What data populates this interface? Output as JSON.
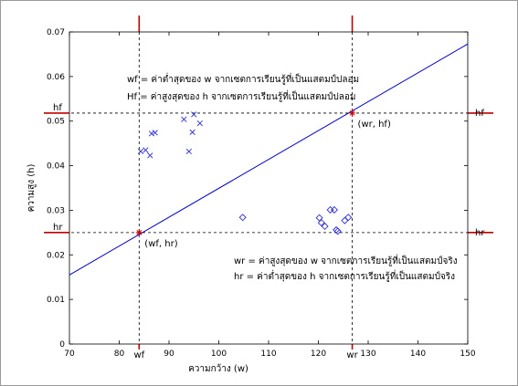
{
  "chart_data": {
    "type": "scatter",
    "title": "",
    "xlabel": "ความกว้าง (w)",
    "ylabel": "ความสูง (h)",
    "xlim": [
      70,
      150
    ],
    "ylim": [
      0,
      0.07
    ],
    "x_ticks": [
      70,
      80,
      90,
      100,
      110,
      120,
      130,
      140,
      150
    ],
    "y_ticks": [
      0,
      0.01,
      0.02,
      0.03,
      0.04,
      0.05,
      0.06,
      0.07
    ],
    "x_tick_labels": [
      "70",
      "80",
      "90",
      "100",
      "110",
      "120",
      "130",
      "140",
      "150"
    ],
    "y_tick_labels": [
      "0",
      "0.01",
      "0.02",
      "0.03",
      "0.04",
      "0.05",
      "0.06",
      "0.07"
    ],
    "grid": false,
    "series": [
      {
        "marker": "x",
        "color": "#2b2bd6",
        "points": [
          [
            84.3,
            0.0432
          ],
          [
            85.3,
            0.0435
          ],
          [
            86.2,
            0.0423
          ],
          [
            86.5,
            0.0472
          ],
          [
            87.2,
            0.0474
          ],
          [
            93.0,
            0.0504
          ],
          [
            94.0,
            0.0432
          ],
          [
            94.7,
            0.0475
          ],
          [
            95.0,
            0.0515
          ],
          [
            96.2,
            0.0495
          ]
        ]
      },
      {
        "marker": "diamond",
        "color": "#2b2bd6",
        "points": [
          [
            104.8,
            0.0284
          ],
          [
            120.2,
            0.0283
          ],
          [
            120.6,
            0.0272
          ],
          [
            121.3,
            0.0264
          ],
          [
            122.4,
            0.0301
          ],
          [
            123.2,
            0.0301
          ],
          [
            123.6,
            0.0256
          ],
          [
            123.9,
            0.0253
          ],
          [
            125.3,
            0.0277
          ],
          [
            126.0,
            0.0284
          ]
        ]
      }
    ],
    "line": {
      "color": "#0000c8",
      "points": [
        [
          70,
          0.0155
        ],
        [
          150,
          0.0673
        ]
      ]
    },
    "reference_lines": {
      "color": "#c00000",
      "verticals": [
        {
          "x": 84.0,
          "label": "wf"
        },
        {
          "x": 126.8,
          "label": "wr"
        }
      ],
      "horizontals": [
        {
          "y": 0.0518,
          "label": "hf"
        },
        {
          "y": 0.025,
          "label": "hr"
        }
      ]
    },
    "special_points": [
      {
        "x": 126.8,
        "y": 0.0518,
        "label": "(wr, hf)",
        "color": "#c00000"
      },
      {
        "x": 84.0,
        "y": 0.025,
        "label": "(wf, hr)",
        "color": "#c00000"
      }
    ],
    "annotations": {
      "top": [
        "wf = ค่าต่ำสุดของ w จากเซตการเรียนรู้ที่เป็นแสตมป์ปลอม",
        "Hf = ค่าสูงสุดของ h จากเซตการเรียนรู้ที่เป็นแสตมป์ปลอม"
      ],
      "bottom": [
        "wr = ค่าสูงสุดของ w จากเซตการเรียนรู้ที่เป็นแสตมป์จริง",
        "hr = ค่าต่ำสุดของ h จากเซตการเรียนรู้ที่เป็นแสตมป์จริง"
      ]
    }
  }
}
